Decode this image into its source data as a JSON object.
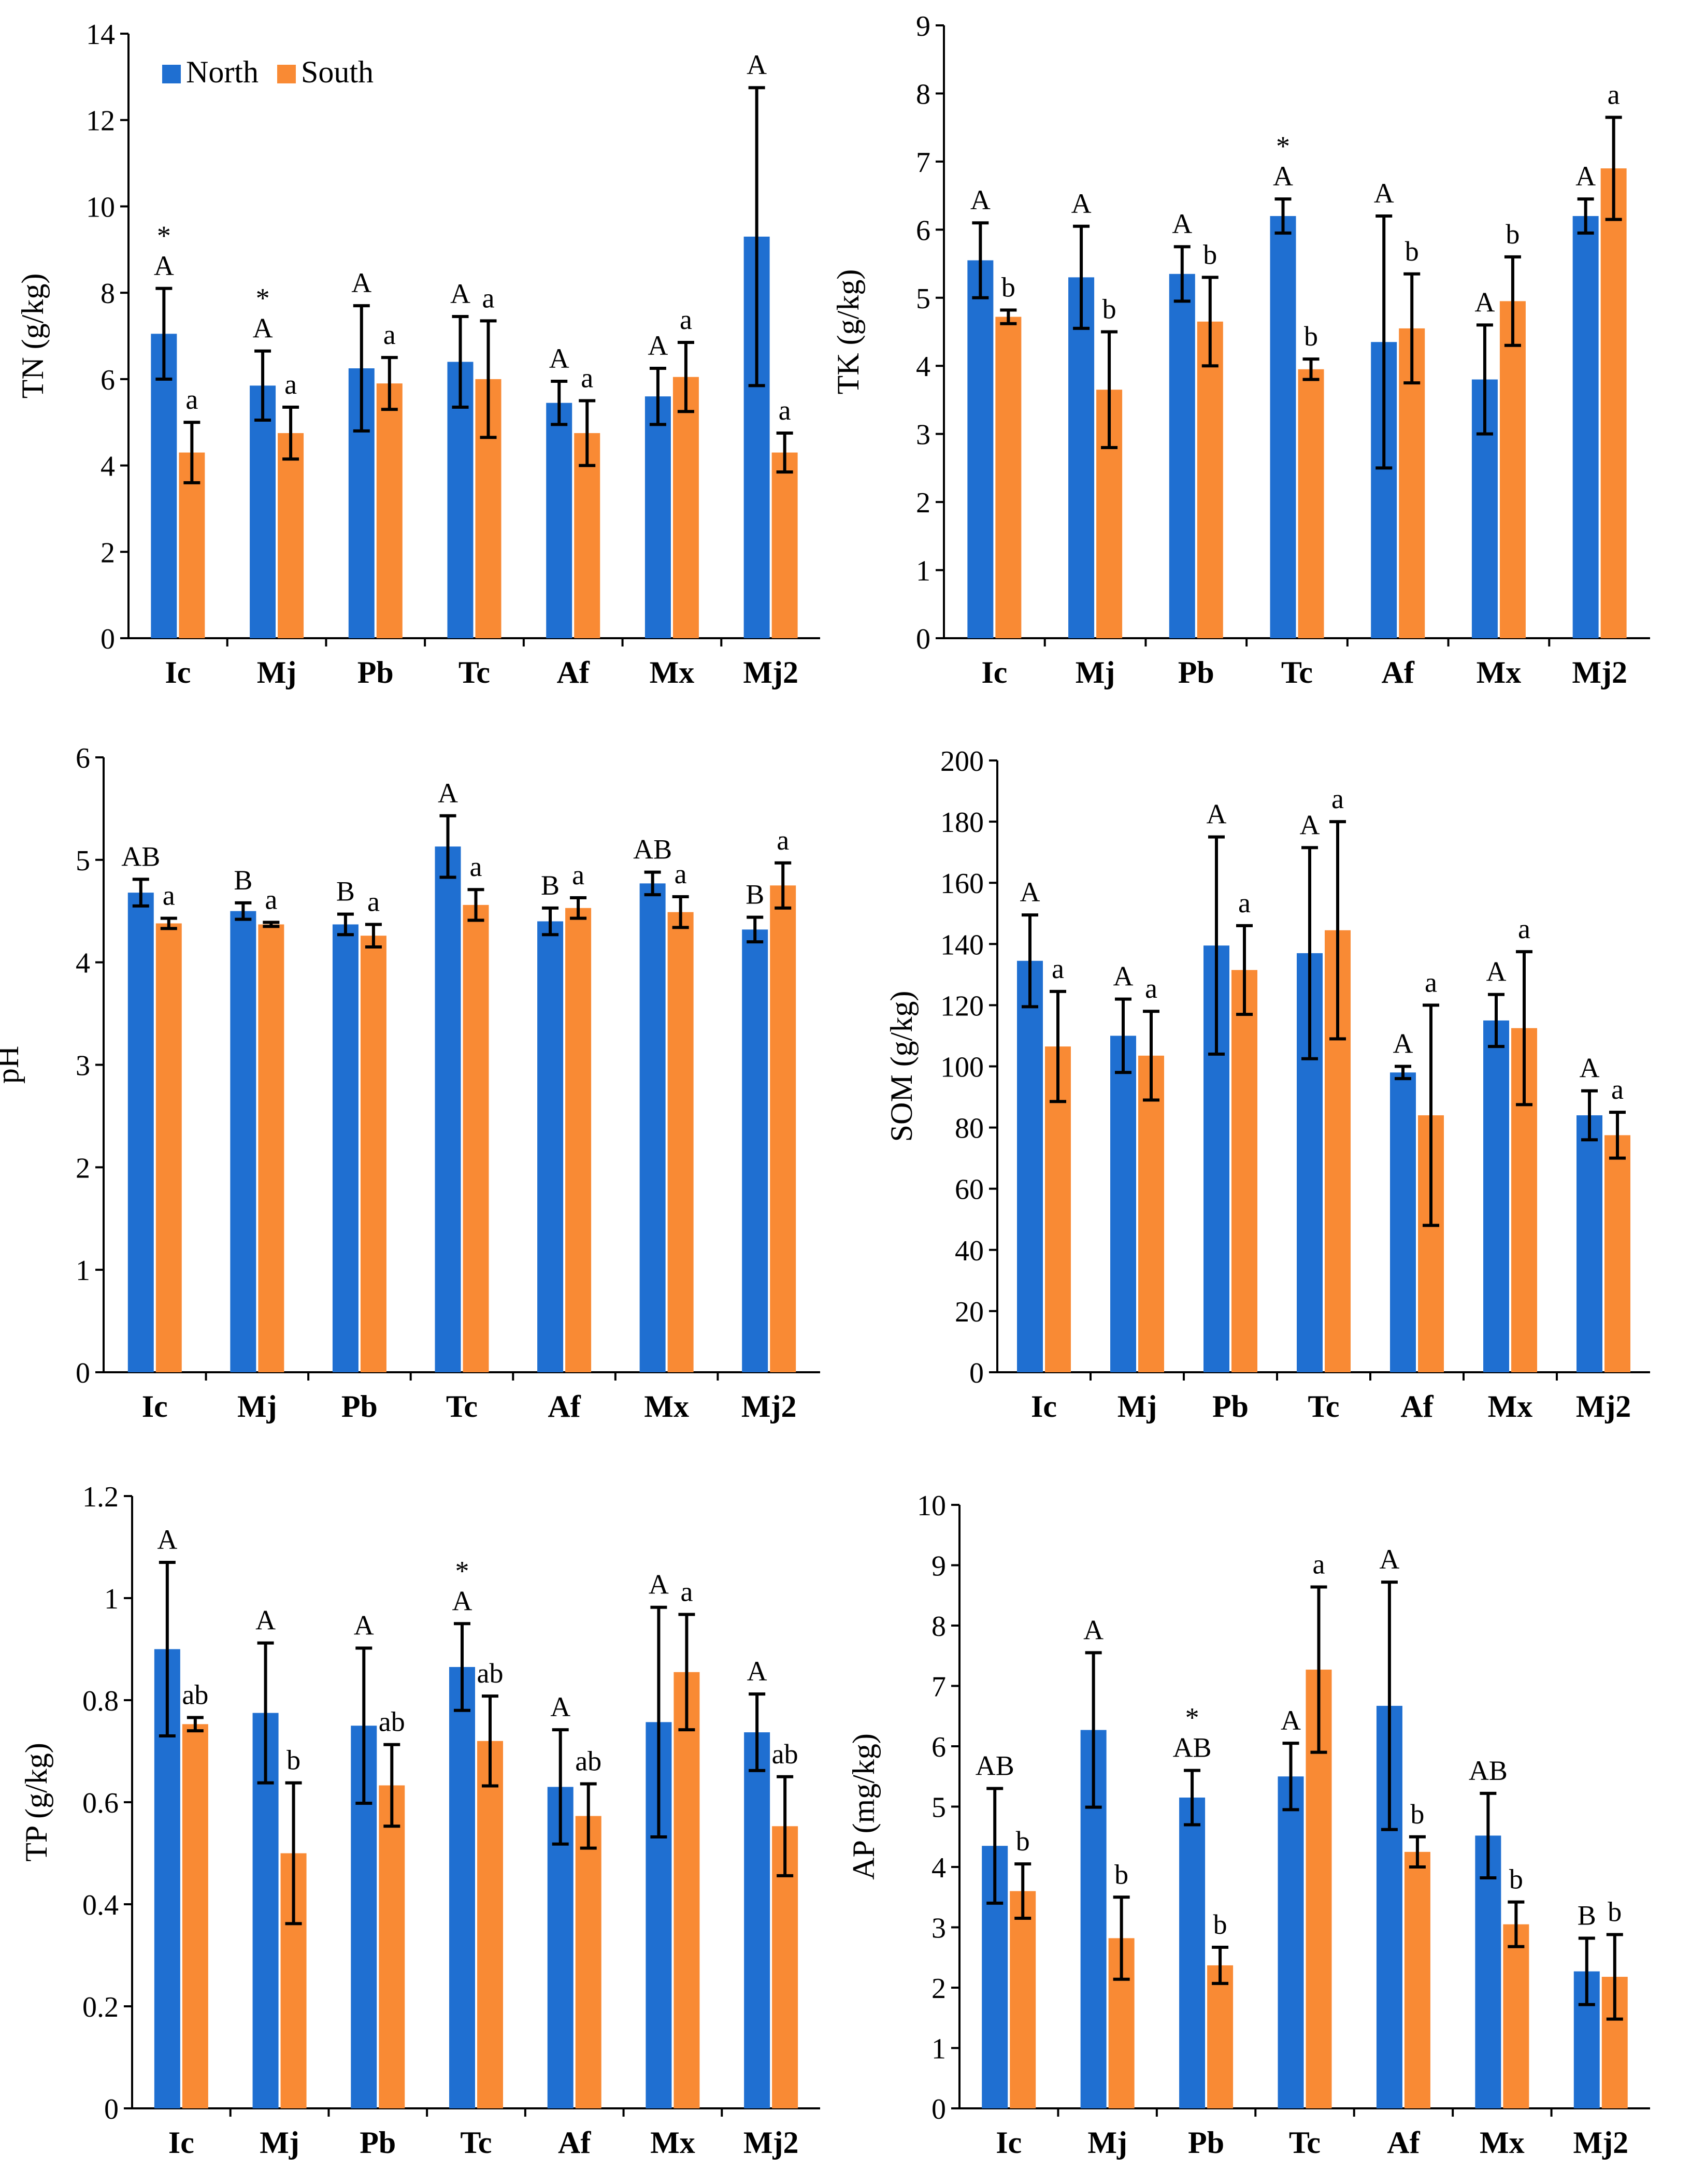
{
  "colors": {
    "north": "#1f6fd1",
    "south": "#f98a34",
    "axis": "#000000"
  },
  "legend": {
    "north": "North",
    "south": "South",
    "placement": "top-left"
  },
  "chart_data": [
    {
      "type": "bar",
      "ylabel": "TN (g/kg)",
      "ylim": [
        0,
        14
      ],
      "yticks": [
        "0",
        "2",
        "4",
        "6",
        "8",
        "10",
        "12",
        "14"
      ],
      "show_legend": true,
      "categories": [
        "Ic",
        "Mj",
        "Pb",
        "Tc",
        "Af",
        "Mx",
        "Mj2"
      ],
      "series": [
        {
          "name": "North",
          "values": [
            7.05,
            5.85,
            6.25,
            6.4,
            5.45,
            5.6,
            9.3
          ],
          "errors": [
            1.05,
            0.8,
            1.45,
            1.05,
            0.5,
            0.65,
            3.45
          ],
          "letters": [
            "A",
            "A",
            "A",
            "A",
            "A",
            "A",
            "A"
          ]
        },
        {
          "name": "South",
          "values": [
            4.3,
            4.75,
            5.9,
            6.0,
            4.75,
            6.05,
            4.3
          ],
          "errors": [
            0.7,
            0.6,
            0.6,
            1.35,
            0.75,
            0.8,
            0.45
          ],
          "letters": [
            "a",
            "a",
            "a",
            "a",
            "a",
            "a",
            "a"
          ]
        }
      ],
      "asterisks": [
        "*",
        "*",
        "",
        "",
        "",
        "",
        ""
      ]
    },
    {
      "type": "bar",
      "ylabel": "TK (g/kg)",
      "ylim": [
        0,
        9
      ],
      "yticks": [
        "0",
        "1",
        "2",
        "3",
        "4",
        "5",
        "6",
        "7",
        "8",
        "9"
      ],
      "show_legend": false,
      "categories": [
        "Ic",
        "Mj",
        "Pb",
        "Tc",
        "Af",
        "Mx",
        "Mj2"
      ],
      "series": [
        {
          "name": "North",
          "values": [
            5.55,
            5.3,
            5.35,
            6.2,
            4.35,
            3.8,
            6.2
          ],
          "errors": [
            0.55,
            0.75,
            0.4,
            0.25,
            1.85,
            0.8,
            0.25
          ],
          "letters": [
            "A",
            "A",
            "A",
            "A",
            "A",
            "A",
            "A"
          ]
        },
        {
          "name": "South",
          "values": [
            4.72,
            3.65,
            4.65,
            3.95,
            4.55,
            4.95,
            6.9
          ],
          "errors": [
            0.1,
            0.85,
            0.65,
            0.15,
            0.8,
            0.65,
            0.75
          ],
          "letters": [
            "b",
            "b",
            "b",
            "b",
            "b",
            "b",
            "a"
          ]
        }
      ],
      "asterisks": [
        "",
        "",
        "",
        "*",
        "",
        "",
        ""
      ]
    },
    {
      "type": "bar",
      "ylabel": "pH",
      "ylim": [
        0,
        6
      ],
      "yticks": [
        "0",
        "1",
        "2",
        "3",
        "4",
        "5",
        "6"
      ],
      "show_legend": false,
      "categories": [
        "Ic",
        "Mj",
        "Pb",
        "Tc",
        "Af",
        "Mx",
        "Mj2"
      ],
      "series": [
        {
          "name": "North",
          "values": [
            4.68,
            4.5,
            4.37,
            5.13,
            4.4,
            4.77,
            4.32
          ],
          "errors": [
            0.13,
            0.08,
            0.1,
            0.3,
            0.13,
            0.11,
            0.12
          ],
          "letters": [
            "AB",
            "B",
            "B",
            "A",
            "B",
            "AB",
            "B"
          ]
        },
        {
          "name": "South",
          "values": [
            4.38,
            4.37,
            4.26,
            4.56,
            4.53,
            4.49,
            4.75
          ],
          "errors": [
            0.05,
            0.02,
            0.11,
            0.15,
            0.1,
            0.15,
            0.22
          ],
          "letters": [
            "a",
            "a",
            "a",
            "a",
            "a",
            "a",
            "a"
          ]
        }
      ],
      "asterisks": [
        "",
        "",
        "",
        "",
        "",
        "",
        ""
      ]
    },
    {
      "type": "bar",
      "ylabel": "SOM (g/kg)",
      "ylim": [
        0,
        200
      ],
      "yticks": [
        "0",
        "20",
        "40",
        "60",
        "80",
        "100",
        "120",
        "140",
        "160",
        "180",
        "200"
      ],
      "show_legend": false,
      "categories": [
        "Ic",
        "Mj",
        "Pb",
        "Tc",
        "Af",
        "Mx",
        "Mj2"
      ],
      "series": [
        {
          "name": "North",
          "values": [
            134.5,
            110.0,
            139.5,
            137.0,
            98.0,
            115.0,
            84.0
          ],
          "errors": [
            15.0,
            12.0,
            35.5,
            34.5,
            2.0,
            8.5,
            8.0
          ],
          "letters": [
            "A",
            "A",
            "A",
            "A",
            "A",
            "A",
            "A"
          ]
        },
        {
          "name": "South",
          "values": [
            106.5,
            103.5,
            131.5,
            144.5,
            84.0,
            112.5,
            77.5
          ],
          "errors": [
            18.0,
            14.5,
            14.5,
            35.5,
            36.0,
            25.0,
            7.5
          ],
          "letters": [
            "a",
            "a",
            "a",
            "a",
            "a",
            "a",
            "a"
          ]
        }
      ],
      "asterisks": [
        "",
        "",
        "",
        "",
        "",
        "",
        ""
      ]
    },
    {
      "type": "bar",
      "ylabel": "TP (g/kg)",
      "ylim": [
        0,
        1.2
      ],
      "yticks": [
        "0",
        "0.2",
        "0.4",
        "0.6",
        "0.8",
        "1",
        "1.2"
      ],
      "show_legend": false,
      "categories": [
        "Ic",
        "Mj",
        "Pb",
        "Tc",
        "Af",
        "Mx",
        "Mj2"
      ],
      "series": [
        {
          "name": "North",
          "values": [
            0.9,
            0.775,
            0.75,
            0.865,
            0.63,
            0.757,
            0.737
          ],
          "errors": [
            0.17,
            0.137,
            0.152,
            0.085,
            0.112,
            0.225,
            0.075
          ],
          "letters": [
            "A",
            "A",
            "A",
            "A",
            "A",
            "A",
            "A"
          ]
        },
        {
          "name": "South",
          "values": [
            0.753,
            0.5,
            0.633,
            0.72,
            0.573,
            0.855,
            0.553
          ],
          "errors": [
            0.013,
            0.138,
            0.08,
            0.088,
            0.063,
            0.113,
            0.097
          ],
          "letters": [
            "ab",
            "b",
            "ab",
            "ab",
            "ab",
            "a",
            "ab"
          ]
        }
      ],
      "asterisks": [
        "",
        "",
        "",
        "*",
        "",
        "",
        ""
      ]
    },
    {
      "type": "bar",
      "ylabel": "AP (mg/kg)",
      "ylim": [
        0,
        10
      ],
      "yticks": [
        "0",
        "1",
        "2",
        "3",
        "4",
        "5",
        "6",
        "7",
        "8",
        "9",
        "10"
      ],
      "show_legend": false,
      "categories": [
        "Ic",
        "Mj",
        "Pb",
        "Tc",
        "Af",
        "Mx",
        "Mj2"
      ],
      "series": [
        {
          "name": "North",
          "values": [
            4.35,
            6.27,
            5.15,
            5.5,
            6.67,
            4.52,
            2.27
          ],
          "errors": [
            0.95,
            1.28,
            0.45,
            0.55,
            2.05,
            0.7,
            0.55
          ],
          "letters": [
            "AB",
            "A",
            "AB",
            "A",
            "A",
            "AB",
            "B"
          ]
        },
        {
          "name": "South",
          "values": [
            3.6,
            2.82,
            2.37,
            7.27,
            4.25,
            3.05,
            2.18
          ],
          "errors": [
            0.45,
            0.68,
            0.3,
            1.37,
            0.25,
            0.37,
            0.7
          ],
          "letters": [
            "b",
            "b",
            "b",
            "a",
            "b",
            "b",
            "b"
          ]
        }
      ],
      "asterisks": [
        "",
        "",
        "*",
        "",
        "",
        "",
        ""
      ]
    }
  ]
}
